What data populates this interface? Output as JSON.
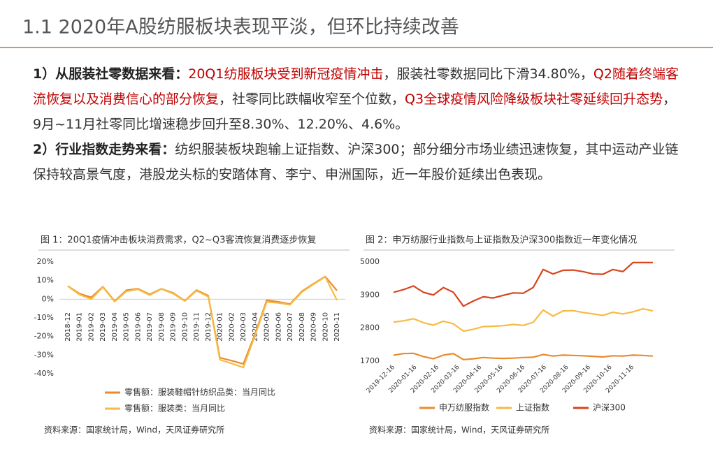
{
  "title": "1.1 2020年A股纺服板块表现平淡，但环比持续改善",
  "paragraphs": [
    {
      "segments": [
        {
          "text": "1）从服装社零数据来看：",
          "style": "bold"
        },
        {
          "text": "20Q1纺服板块受到新冠疫情冲击",
          "style": "red"
        },
        {
          "text": "，服装社零数据同比下滑34.80%，",
          "style": "normal"
        },
        {
          "text": "Q2随着终端客流恢复以及消费信心的部分恢复",
          "style": "red"
        },
        {
          "text": "，社零同比跌幅收窄至个位数，",
          "style": "normal"
        },
        {
          "text": "Q3全球疫情风险降级板块社零延续回升态势",
          "style": "red"
        },
        {
          "text": "，9月~11月社零同比增速稳步回升至8.30%、12.20%、4.6%。",
          "style": "normal"
        }
      ]
    },
    {
      "segments": [
        {
          "text": "2）行业指数走势来看：",
          "style": "bold"
        },
        {
          "text": "纺织服装板块跑输上证指数、沪深300；部分细分市场业绩迅速恢复，其中运动产业链保持较高景气度，港股龙头标的安踏体育、李宁、申洲国际，近一年股价延续出色表现。",
          "style": "normal"
        }
      ]
    }
  ],
  "chart_data": [
    {
      "type": "line",
      "title": "图 1：20Q1疫情冲击板块消费需求，Q2~Q3客流恢复消费逐步恢复",
      "source": "资料来源：国家统计局，Wind，天风证券研究所",
      "categories": [
        "2018-12",
        "2019-01",
        "2019-02",
        "2019-03",
        "2019-04",
        "2019-05",
        "2019-06",
        "2019-07",
        "2019-08",
        "2019-09",
        "2019-10",
        "2019-11",
        "2019-12",
        "2020-01",
        "2020-02",
        "2020-03",
        "2020-04",
        "2020-05",
        "2020-06",
        "2020-07",
        "2020-08",
        "2020-09",
        "2020-10",
        "2020-11"
      ],
      "series": [
        {
          "name": "零售额：服装鞋帽针纺织品类：当月同比",
          "color": "#ea8a2e",
          "values": [
            7.1,
            3.0,
            1.0,
            6.7,
            -1.0,
            4.8,
            5.6,
            2.6,
            5.6,
            3.4,
            -0.8,
            4.9,
            1.9,
            -31.4,
            -33.0,
            -34.8,
            -18.7,
            -0.6,
            -1.4,
            -2.6,
            4.2,
            8.3,
            12.2,
            4.6
          ]
        },
        {
          "name": "零售额：服装类：当月同比",
          "color": "#f6bb43",
          "values": [
            7.0,
            2.5,
            0.0,
            6.5,
            -1.3,
            4.2,
            5.3,
            2.2,
            5.5,
            3.0,
            -1.0,
            4.5,
            1.4,
            -32.5,
            -34.5,
            -36.7,
            -19.5,
            -1.5,
            -2.0,
            -3.0,
            3.8,
            8.0,
            12.0,
            -0.5
          ]
        }
      ],
      "ylim": [
        -40,
        20
      ],
      "yticks": [
        {
          "value": 20,
          "label": "20%"
        },
        {
          "value": 10,
          "label": "10%"
        },
        {
          "value": 0,
          "label": "0%"
        },
        {
          "value": -10,
          "label": "-10%"
        },
        {
          "value": -20,
          "label": "-20%"
        },
        {
          "value": -30,
          "label": "-30%"
        },
        {
          "value": -40,
          "label": "-40%"
        }
      ],
      "grid": false
    },
    {
      "type": "line",
      "title": "图 2：申万纺服行业指数与上证指数及沪深300指数近一年变化情况",
      "source": "资料来源：国家统计局，Wind，天风证券研究所",
      "x": [
        "2019-12-16",
        "2019-12-30",
        "2020-01-13",
        "2020-01-27",
        "2020-02-10",
        "2020-02-24",
        "2020-03-09",
        "2020-03-23",
        "2020-04-06",
        "2020-04-20",
        "2020-05-04",
        "2020-05-18",
        "2020-06-01",
        "2020-06-15",
        "2020-06-29",
        "2020-07-13",
        "2020-07-27",
        "2020-08-10",
        "2020-08-24",
        "2020-09-07",
        "2020-09-21",
        "2020-10-05",
        "2020-10-19",
        "2020-11-02",
        "2020-11-16",
        "2020-11-30",
        "2020-12-14"
      ],
      "series": [
        {
          "name": "申万纺服指数",
          "color": "#ea8a2e",
          "values": [
            1900,
            1950,
            1960,
            1850,
            1780,
            1900,
            1950,
            1750,
            1780,
            1820,
            1800,
            1790,
            1800,
            1820,
            1830,
            1920,
            1870,
            1900,
            1890,
            1880,
            1860,
            1840,
            1880,
            1870,
            1900,
            1890,
            1870
          ]
        },
        {
          "name": "上证指数",
          "color": "#f6bb43",
          "values": [
            3000,
            3040,
            3110,
            2980,
            2900,
            3030,
            2940,
            2700,
            2760,
            2850,
            2860,
            2880,
            2920,
            2890,
            2990,
            3400,
            3200,
            3370,
            3380,
            3320,
            3270,
            3220,
            3330,
            3270,
            3340,
            3440,
            3370
          ]
        },
        {
          "name": "沪深300",
          "color": "#d8441c",
          "values": [
            3990,
            4080,
            4200,
            3990,
            3900,
            4150,
            3990,
            3530,
            3700,
            3840,
            3800,
            3890,
            3970,
            3960,
            4150,
            4750,
            4600,
            4720,
            4730,
            4680,
            4600,
            4590,
            4750,
            4680,
            4980,
            4980,
            4980
          ]
        }
      ],
      "xlim": [
        "2019-12-16",
        "2020-12-20"
      ],
      "xticks": [
        "2019-12-16",
        "2020-01-16",
        "2020-02-16",
        "2020-03-16",
        "2020-04-16",
        "2020-05-16",
        "2020-06-16",
        "2020-07-16",
        "2020-08-16",
        "2020-09-16",
        "2020-10-16",
        "2020-11-16"
      ],
      "ylim": [
        1700,
        5000
      ],
      "yticks": [
        1700,
        2800,
        3900,
        5000
      ],
      "grid": false
    }
  ]
}
